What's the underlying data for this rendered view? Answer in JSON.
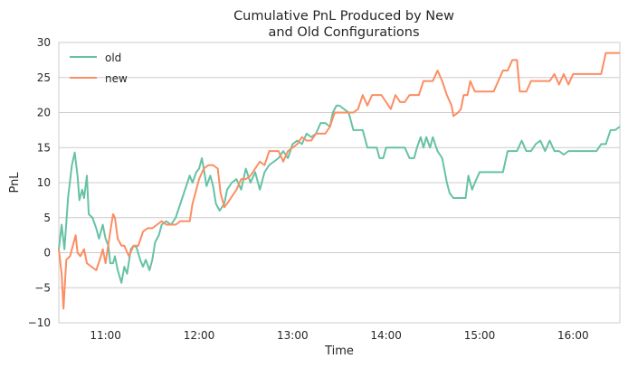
{
  "chart_data": {
    "type": "line",
    "title_lines": [
      "Cumulative PnL Produced by New",
      "and Old Configurations"
    ],
    "xlabel": "Time",
    "ylabel": "PnL",
    "x_unit": "time of day (decimal hours)",
    "xlim": [
      10.5,
      16.5
    ],
    "ylim": [
      -10,
      30
    ],
    "x_ticks": [
      {
        "value": 11,
        "label": "11:00"
      },
      {
        "value": 12,
        "label": "12:00"
      },
      {
        "value": 13,
        "label": "13:00"
      },
      {
        "value": 14,
        "label": "14:00"
      },
      {
        "value": 15,
        "label": "15:00"
      },
      {
        "value": 16,
        "label": "16:00"
      }
    ],
    "y_ticks": [
      {
        "value": -10,
        "label": "−10"
      },
      {
        "value": -5,
        "label": "−5"
      },
      {
        "value": 0,
        "label": "0"
      },
      {
        "value": 5,
        "label": "5"
      },
      {
        "value": 10,
        "label": "10"
      },
      {
        "value": 15,
        "label": "15"
      },
      {
        "value": 20,
        "label": "20"
      },
      {
        "value": 25,
        "label": "25"
      },
      {
        "value": 30,
        "label": "30"
      }
    ],
    "grid": "horizontal",
    "legend_position": "top-left",
    "series": [
      {
        "name": "old",
        "color": "#66c2a5",
        "points": [
          [
            10.5,
            0.5
          ],
          [
            10.53,
            4.0
          ],
          [
            10.56,
            0.5
          ],
          [
            10.6,
            8.0
          ],
          [
            10.64,
            12.5
          ],
          [
            10.67,
            14.3
          ],
          [
            10.7,
            11.0
          ],
          [
            10.72,
            7.5
          ],
          [
            10.75,
            9.0
          ],
          [
            10.77,
            7.8
          ],
          [
            10.8,
            11.0
          ],
          [
            10.82,
            5.5
          ],
          [
            10.86,
            5.0
          ],
          [
            10.9,
            3.5
          ],
          [
            10.93,
            2.0
          ],
          [
            10.97,
            4.0
          ],
          [
            11.0,
            2.0
          ],
          [
            11.03,
            1.0
          ],
          [
            11.05,
            -1.5
          ],
          [
            11.08,
            -1.5
          ],
          [
            11.1,
            -0.5
          ],
          [
            11.13,
            -2.5
          ],
          [
            11.17,
            -4.3
          ],
          [
            11.2,
            -2.0
          ],
          [
            11.23,
            -3.0
          ],
          [
            11.27,
            0.5
          ],
          [
            11.3,
            1.0
          ],
          [
            11.33,
            0.8
          ],
          [
            11.37,
            -1.0
          ],
          [
            11.4,
            -2.0
          ],
          [
            11.43,
            -1.0
          ],
          [
            11.47,
            -2.5
          ],
          [
            11.5,
            -1.0
          ],
          [
            11.53,
            1.5
          ],
          [
            11.57,
            2.5
          ],
          [
            11.6,
            4.0
          ],
          [
            11.65,
            4.5
          ],
          [
            11.7,
            4.0
          ],
          [
            11.75,
            5.0
          ],
          [
            11.8,
            7.0
          ],
          [
            11.85,
            9.0
          ],
          [
            11.9,
            11.0
          ],
          [
            11.93,
            10.0
          ],
          [
            11.97,
            11.5
          ],
          [
            12.0,
            12.0
          ],
          [
            12.03,
            13.5
          ],
          [
            12.05,
            12.0
          ],
          [
            12.08,
            9.5
          ],
          [
            12.12,
            11.0
          ],
          [
            12.15,
            9.5
          ],
          [
            12.18,
            7.0
          ],
          [
            12.22,
            6.0
          ],
          [
            12.27,
            7.0
          ],
          [
            12.3,
            9.0
          ],
          [
            12.35,
            10.0
          ],
          [
            12.4,
            10.5
          ],
          [
            12.45,
            9.0
          ],
          [
            12.5,
            12.0
          ],
          [
            12.55,
            10.0
          ],
          [
            12.6,
            11.5
          ],
          [
            12.65,
            9.0
          ],
          [
            12.7,
            11.5
          ],
          [
            12.75,
            12.5
          ],
          [
            12.8,
            13.0
          ],
          [
            12.85,
            13.5
          ],
          [
            12.9,
            14.5
          ],
          [
            12.95,
            13.5
          ],
          [
            13.0,
            15.5
          ],
          [
            13.05,
            16.0
          ],
          [
            13.1,
            15.5
          ],
          [
            13.15,
            17.0
          ],
          [
            13.2,
            16.5
          ],
          [
            13.25,
            17.0
          ],
          [
            13.3,
            18.5
          ],
          [
            13.35,
            18.5
          ],
          [
            13.4,
            18.0
          ],
          [
            13.43,
            20.0
          ],
          [
            13.47,
            21.0
          ],
          [
            13.5,
            21.0
          ],
          [
            13.55,
            20.5
          ],
          [
            13.6,
            20.0
          ],
          [
            13.65,
            17.5
          ],
          [
            13.7,
            17.5
          ],
          [
            13.75,
            17.5
          ],
          [
            13.8,
            15.0
          ],
          [
            13.85,
            15.0
          ],
          [
            13.9,
            15.0
          ],
          [
            13.93,
            13.5
          ],
          [
            13.97,
            13.5
          ],
          [
            14.0,
            15.0
          ],
          [
            14.05,
            15.0
          ],
          [
            14.1,
            15.0
          ],
          [
            14.15,
            15.0
          ],
          [
            14.2,
            15.0
          ],
          [
            14.25,
            13.5
          ],
          [
            14.3,
            13.5
          ],
          [
            14.33,
            15.0
          ],
          [
            14.37,
            16.5
          ],
          [
            14.4,
            15.0
          ],
          [
            14.43,
            16.5
          ],
          [
            14.47,
            15.0
          ],
          [
            14.5,
            16.5
          ],
          [
            14.55,
            14.5
          ],
          [
            14.6,
            13.5
          ],
          [
            14.65,
            10.0
          ],
          [
            14.68,
            8.5
          ],
          [
            14.72,
            7.8
          ],
          [
            14.8,
            7.8
          ],
          [
            14.85,
            7.8
          ],
          [
            14.88,
            11.0
          ],
          [
            14.92,
            9.0
          ],
          [
            14.95,
            10.0
          ],
          [
            15.0,
            11.5
          ],
          [
            15.05,
            11.5
          ],
          [
            15.1,
            11.5
          ],
          [
            15.15,
            11.5
          ],
          [
            15.2,
            11.5
          ],
          [
            15.25,
            11.5
          ],
          [
            15.3,
            14.5
          ],
          [
            15.35,
            14.5
          ],
          [
            15.4,
            14.5
          ],
          [
            15.45,
            16.0
          ],
          [
            15.5,
            14.5
          ],
          [
            15.55,
            14.5
          ],
          [
            15.6,
            15.5
          ],
          [
            15.65,
            16.0
          ],
          [
            15.7,
            14.5
          ],
          [
            15.75,
            16.0
          ],
          [
            15.8,
            14.5
          ],
          [
            15.85,
            14.5
          ],
          [
            15.9,
            14.0
          ],
          [
            15.95,
            14.5
          ],
          [
            16.0,
            14.5
          ],
          [
            16.1,
            14.5
          ],
          [
            16.2,
            14.5
          ],
          [
            16.25,
            14.5
          ],
          [
            16.3,
            15.5
          ],
          [
            16.35,
            15.5
          ],
          [
            16.4,
            17.5
          ],
          [
            16.45,
            17.5
          ],
          [
            16.5,
            18.0
          ]
        ]
      },
      {
        "name": "new",
        "color": "#fc8d62",
        "points": [
          [
            10.5,
            0.5
          ],
          [
            10.53,
            -3.0
          ],
          [
            10.55,
            -8.0
          ],
          [
            10.58,
            -1.0
          ],
          [
            10.62,
            -0.5
          ],
          [
            10.65,
            1.0
          ],
          [
            10.68,
            2.5
          ],
          [
            10.7,
            0.0
          ],
          [
            10.73,
            -0.5
          ],
          [
            10.77,
            0.5
          ],
          [
            10.8,
            -1.5
          ],
          [
            10.85,
            -2.0
          ],
          [
            10.9,
            -2.5
          ],
          [
            10.95,
            -0.5
          ],
          [
            10.97,
            0.5
          ],
          [
            11.0,
            -1.5
          ],
          [
            11.05,
            3.0
          ],
          [
            11.08,
            5.5
          ],
          [
            11.1,
            5.0
          ],
          [
            11.13,
            2.0
          ],
          [
            11.17,
            1.0
          ],
          [
            11.2,
            1.0
          ],
          [
            11.25,
            -0.5
          ],
          [
            11.3,
            1.0
          ],
          [
            11.35,
            1.0
          ],
          [
            11.4,
            3.0
          ],
          [
            11.45,
            3.5
          ],
          [
            11.5,
            3.5
          ],
          [
            11.55,
            4.0
          ],
          [
            11.6,
            4.5
          ],
          [
            11.65,
            4.0
          ],
          [
            11.7,
            4.0
          ],
          [
            11.75,
            4.0
          ],
          [
            11.8,
            4.5
          ],
          [
            11.85,
            4.5
          ],
          [
            11.9,
            4.5
          ],
          [
            11.93,
            7.0
          ],
          [
            11.97,
            9.0
          ],
          [
            12.0,
            10.5
          ],
          [
            12.05,
            12.0
          ],
          [
            12.1,
            12.5
          ],
          [
            12.15,
            12.5
          ],
          [
            12.2,
            12.0
          ],
          [
            12.23,
            8.5
          ],
          [
            12.27,
            6.5
          ],
          [
            12.3,
            7.0
          ],
          [
            12.35,
            8.0
          ],
          [
            12.4,
            9.0
          ],
          [
            12.45,
            10.5
          ],
          [
            12.5,
            10.5
          ],
          [
            12.55,
            11.0
          ],
          [
            12.6,
            12.0
          ],
          [
            12.65,
            13.0
          ],
          [
            12.7,
            12.5
          ],
          [
            12.75,
            14.5
          ],
          [
            12.8,
            14.5
          ],
          [
            12.85,
            14.5
          ],
          [
            12.9,
            13.0
          ],
          [
            12.95,
            14.5
          ],
          [
            13.0,
            15.0
          ],
          [
            13.05,
            15.5
          ],
          [
            13.1,
            16.5
          ],
          [
            13.15,
            16.0
          ],
          [
            13.2,
            16.0
          ],
          [
            13.25,
            17.0
          ],
          [
            13.3,
            17.0
          ],
          [
            13.35,
            17.0
          ],
          [
            13.4,
            18.0
          ],
          [
            13.45,
            20.0
          ],
          [
            13.5,
            20.0
          ],
          [
            13.55,
            20.0
          ],
          [
            13.6,
            20.0
          ],
          [
            13.65,
            20.0
          ],
          [
            13.7,
            20.5
          ],
          [
            13.75,
            22.5
          ],
          [
            13.8,
            21.0
          ],
          [
            13.85,
            22.5
          ],
          [
            13.9,
            22.5
          ],
          [
            13.95,
            22.5
          ],
          [
            14.0,
            21.5
          ],
          [
            14.05,
            20.5
          ],
          [
            14.1,
            22.5
          ],
          [
            14.15,
            21.5
          ],
          [
            14.2,
            21.5
          ],
          [
            14.25,
            22.5
          ],
          [
            14.3,
            22.5
          ],
          [
            14.35,
            22.5
          ],
          [
            14.4,
            24.5
          ],
          [
            14.45,
            24.5
          ],
          [
            14.5,
            24.5
          ],
          [
            14.55,
            26.0
          ],
          [
            14.6,
            24.5
          ],
          [
            14.65,
            22.5
          ],
          [
            14.7,
            21.0
          ],
          [
            14.72,
            19.5
          ],
          [
            14.77,
            20.0
          ],
          [
            14.8,
            20.5
          ],
          [
            14.83,
            22.5
          ],
          [
            14.87,
            22.5
          ],
          [
            14.9,
            24.5
          ],
          [
            14.95,
            23.0
          ],
          [
            15.0,
            23.0
          ],
          [
            15.05,
            23.0
          ],
          [
            15.1,
            23.0
          ],
          [
            15.15,
            23.0
          ],
          [
            15.2,
            24.5
          ],
          [
            15.25,
            26.0
          ],
          [
            15.3,
            26.0
          ],
          [
            15.35,
            27.5
          ],
          [
            15.4,
            27.5
          ],
          [
            15.43,
            23.0
          ],
          [
            15.47,
            23.0
          ],
          [
            15.5,
            23.0
          ],
          [
            15.55,
            24.5
          ],
          [
            15.6,
            24.5
          ],
          [
            15.65,
            24.5
          ],
          [
            15.7,
            24.5
          ],
          [
            15.75,
            24.5
          ],
          [
            15.8,
            25.5
          ],
          [
            15.85,
            24.0
          ],
          [
            15.9,
            25.5
          ],
          [
            15.95,
            24.0
          ],
          [
            16.0,
            25.5
          ],
          [
            16.1,
            25.5
          ],
          [
            16.2,
            25.5
          ],
          [
            16.25,
            25.5
          ],
          [
            16.3,
            25.5
          ],
          [
            16.35,
            28.5
          ],
          [
            16.4,
            28.5
          ],
          [
            16.45,
            28.5
          ],
          [
            16.5,
            28.5
          ]
        ]
      }
    ]
  },
  "legend": {
    "items": [
      {
        "label": "old",
        "color": "#66c2a5"
      },
      {
        "label": "new",
        "color": "#fc8d62"
      }
    ]
  }
}
